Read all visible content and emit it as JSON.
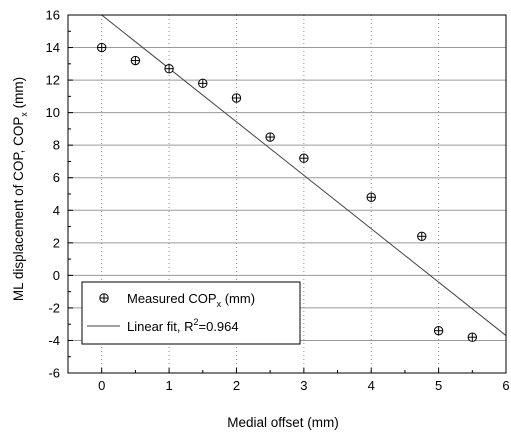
{
  "chart_data": {
    "type": "scatter",
    "xlabel": "Medial offset (mm)",
    "ylabel": "ML displacement of COP, COP",
    "ylabel_subscript": "x",
    "ylabel_suffix": " (mm)",
    "xlim": [
      -0.5,
      6
    ],
    "ylim": [
      -6,
      16
    ],
    "xticks": [
      0,
      1,
      2,
      3,
      4,
      5,
      6
    ],
    "yticks": [
      -6,
      -4,
      -2,
      0,
      2,
      4,
      6,
      8,
      10,
      12,
      14,
      16
    ],
    "grid": {
      "vertical": "dotted",
      "horizontal": "solid"
    },
    "legend_position": "lower-left",
    "series": [
      {
        "name": "Measured COP",
        "name_subscript": "x",
        "name_suffix": " (mm)",
        "marker": "circle-plus",
        "x": [
          0,
          0.5,
          1,
          1.5,
          2,
          2.5,
          3,
          4,
          4.75,
          5,
          5.5
        ],
        "y": [
          14.0,
          13.2,
          12.7,
          11.8,
          10.9,
          8.5,
          7.2,
          4.8,
          2.4,
          -3.4,
          -3.8
        ]
      },
      {
        "name": "Linear fit, R",
        "name_superscript": "2",
        "name_suffix": "=0.964",
        "type": "line",
        "x": [
          0,
          6
        ],
        "y": [
          16.0,
          -3.7
        ]
      }
    ]
  }
}
